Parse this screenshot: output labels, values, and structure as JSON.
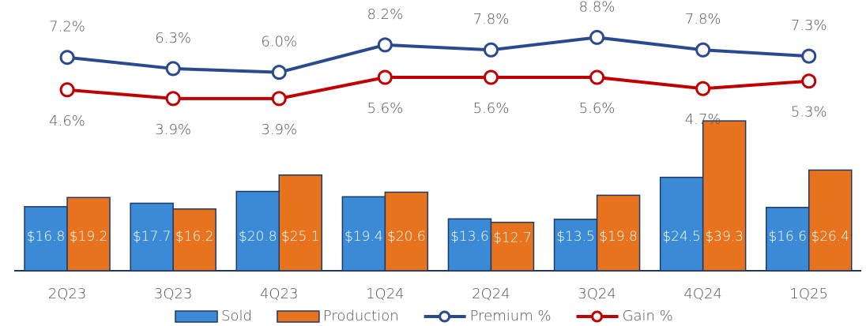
{
  "chart_data": {
    "type": "bar-line",
    "categories": [
      "2Q23",
      "3Q23",
      "4Q23",
      "1Q24",
      "2Q24",
      "3Q24",
      "4Q24",
      "1Q25"
    ],
    "ylim": [
      0,
      71
    ],
    "y2lim": [
      -9.9,
      11.8
    ],
    "series": [
      {
        "name": "Sold",
        "type": "bar",
        "color": "#3a8ad6",
        "values": [
          16.8,
          17.7,
          20.8,
          19.4,
          13.6,
          13.5,
          24.5,
          16.6
        ],
        "value_labels": [
          "$16.8",
          "$17.7",
          "$20.8",
          "$19.4",
          "$13.6",
          "$13.5",
          "$24.5",
          "$16.6"
        ]
      },
      {
        "name": "Production",
        "type": "bar",
        "color": "#e8731e",
        "values": [
          19.2,
          16.2,
          25.1,
          20.6,
          12.7,
          19.8,
          39.3,
          26.4
        ],
        "value_labels": [
          "$19.2",
          "$16.2",
          "$25.1",
          "$20.6",
          "$12.7",
          "$19.8",
          "$39.3",
          "$26.4"
        ]
      },
      {
        "name": "Premium %",
        "type": "line",
        "axis": "y2",
        "color": "#2b4a8e",
        "values": [
          7.2,
          6.3,
          6.0,
          8.2,
          7.8,
          8.8,
          7.8,
          7.3
        ],
        "value_labels": [
          "7.2%",
          "6.3%",
          "6.0%",
          "8.2%",
          "7.8%",
          "8.8%",
          "7.8%",
          "7.3%"
        ]
      },
      {
        "name": "Gain %",
        "type": "line",
        "axis": "y2",
        "color": "#c00000",
        "values": [
          4.6,
          3.9,
          3.9,
          5.6,
          5.6,
          5.6,
          4.7,
          5.3
        ],
        "value_labels": [
          "4.6%",
          "3.9%",
          "3.9%",
          "5.6%",
          "5.6%",
          "5.6%",
          "4.7%",
          "5.3%"
        ]
      }
    ]
  }
}
